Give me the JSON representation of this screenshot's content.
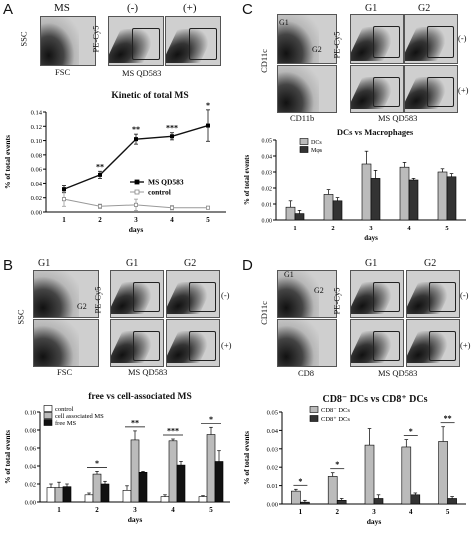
{
  "panels": {
    "A": {
      "letter": "A",
      "flow_titles": [
        "MS",
        "(-)",
        "(+)"
      ],
      "axis_ssc": "SSC",
      "axis_fsc": "FSC",
      "axis_pecy5": "PE-Cy5",
      "axis_msqd": "MS QD583",
      "chart_title": "Kinetic of total MS",
      "ylabel": "% of total events",
      "xlabel": "days",
      "legend": [
        "MS QD583",
        "control"
      ],
      "sig": [
        "**",
        "**",
        "***",
        "*"
      ]
    },
    "B": {
      "letter": "B",
      "gates": [
        "G1",
        "G2"
      ],
      "signs": [
        "(-)",
        "(+)"
      ],
      "axis_ssc": "SSC",
      "axis_fsc": "FSC",
      "axis_pecy5": "PE-Cy5",
      "axis_msqd": "MS QD583",
      "chart_title": "free vs cell-associated MS",
      "ylabel": "% of total events",
      "xlabel": "days",
      "legend": [
        "control",
        "cell associated MS",
        "free MS"
      ],
      "sig": [
        "*",
        "**",
        "***",
        "*"
      ]
    },
    "C": {
      "letter": "C",
      "gates": [
        "G1",
        "G2"
      ],
      "signs": [
        "(-)",
        "(+)"
      ],
      "axis_cd11c": "CD11c",
      "axis_cd11b": "CD11b",
      "axis_pecy5": "PE-Cy5",
      "axis_msqd": "MS QD583",
      "chart_title": "DCs vs Macrophages",
      "ylabel": "% of total events",
      "xlabel": "days",
      "legend": [
        "DCs",
        "Mφs"
      ]
    },
    "D": {
      "letter": "D",
      "gates": [
        "G1",
        "G2"
      ],
      "signs": [
        "(-)",
        "(+)"
      ],
      "axis_cd11c": "CD11c",
      "axis_cd8": "CD8",
      "axis_pecy5": "PE-Cy5",
      "axis_msqd": "MS QD583",
      "chart_title": "CD8⁻ DCs vs CD8⁺ DCs",
      "ylabel": "% of total events",
      "xlabel": "days",
      "legend": [
        "CD8⁻ DCs",
        "CD8⁺ DCs"
      ],
      "sig": [
        "*",
        "*",
        "*",
        "**"
      ]
    }
  },
  "chart_data": [
    {
      "id": "A",
      "type": "line",
      "x": [
        1,
        2,
        3,
        4,
        5
      ],
      "xlabel": "days",
      "ylabel": "% of total events",
      "title": "Kinetic of total MS",
      "ylim": [
        0,
        0.14
      ],
      "yticks": [
        "0.00",
        "0.02",
        "0.04",
        "0.06",
        "0.08",
        "0.10",
        "0.12",
        "0.14"
      ],
      "series": [
        {
          "name": "MS QD583",
          "values": [
            0.032,
            0.052,
            0.102,
            0.106,
            0.121
          ],
          "err": [
            0.005,
            0.005,
            0.007,
            0.005,
            0.022
          ],
          "color": "#111111"
        },
        {
          "name": "control",
          "values": [
            0.018,
            0.008,
            0.01,
            0.006,
            0.006
          ],
          "err": [
            0.01,
            0.003,
            0.008,
            0.003,
            0.002
          ],
          "color": "#999999"
        }
      ]
    },
    {
      "id": "B",
      "type": "bar",
      "categories": [
        "1",
        "2",
        "3",
        "4",
        "5"
      ],
      "xlabel": "days",
      "ylabel": "% of total events",
      "title": "free vs cell-associated MS",
      "ylim": [
        0,
        0.1
      ],
      "yticks": [
        "0.00",
        "0.02",
        "0.04",
        "0.06",
        "0.08",
        "0.10"
      ],
      "series": [
        {
          "name": "control",
          "values": [
            0.016,
            0.008,
            0.013,
            0.006,
            0.006
          ],
          "err": [
            0.004,
            0.002,
            0.005,
            0.002,
            0.001
          ],
          "color": "#ffffff"
        },
        {
          "name": "cell associated MS",
          "values": [
            0.016,
            0.031,
            0.069,
            0.068,
            0.075
          ],
          "err": [
            0.006,
            0.003,
            0.01,
            0.002,
            0.008
          ],
          "color": "#bbbbbb"
        },
        {
          "name": "free MS",
          "values": [
            0.017,
            0.02,
            0.033,
            0.041,
            0.045
          ],
          "err": [
            0.003,
            0.003,
            0.001,
            0.004,
            0.012
          ],
          "color": "#111111"
        }
      ]
    },
    {
      "id": "C",
      "type": "bar",
      "categories": [
        "1",
        "2",
        "3",
        "4",
        "5"
      ],
      "xlabel": "days",
      "ylabel": "% of total events",
      "title": "DCs vs Macrophages",
      "ylim": [
        0,
        0.05
      ],
      "yticks": [
        "0.00",
        "0.01",
        "0.02",
        "0.03",
        "0.04",
        "0.05"
      ],
      "series": [
        {
          "name": "DCs",
          "values": [
            0.008,
            0.016,
            0.035,
            0.033,
            0.03
          ],
          "err": [
            0.004,
            0.003,
            0.008,
            0.003,
            0.002
          ],
          "color": "#bbbbbb"
        },
        {
          "name": "Mφs",
          "values": [
            0.004,
            0.012,
            0.026,
            0.025,
            0.027
          ],
          "err": [
            0.002,
            0.002,
            0.005,
            0.001,
            0.002
          ],
          "color": "#333333"
        }
      ]
    },
    {
      "id": "D",
      "type": "bar",
      "categories": [
        "1",
        "2",
        "3",
        "4",
        "5"
      ],
      "xlabel": "days",
      "ylabel": "% of total events",
      "title": "CD8⁻ DCs vs CD8⁺ DCs",
      "ylim": [
        0,
        0.05
      ],
      "yticks": [
        "0.00",
        "0.01",
        "0.02",
        "0.03",
        "0.04",
        "0.05"
      ],
      "series": [
        {
          "name": "CD8⁻ DCs",
          "values": [
            0.007,
            0.015,
            0.032,
            0.031,
            0.034
          ],
          "err": [
            0.001,
            0.002,
            0.009,
            0.004,
            0.008
          ],
          "color": "#bbbbbb"
        },
        {
          "name": "CD8⁺ DCs",
          "values": [
            0.001,
            0.002,
            0.003,
            0.005,
            0.003
          ],
          "err": [
            0.001,
            0.001,
            0.002,
            0.001,
            0.001
          ],
          "color": "#333333"
        }
      ]
    }
  ]
}
